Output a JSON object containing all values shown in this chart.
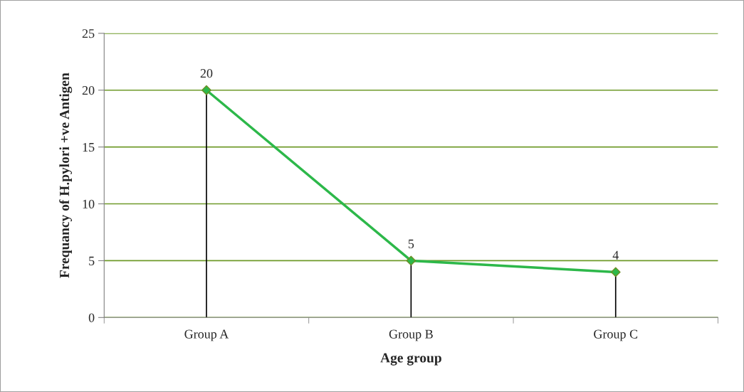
{
  "chart_data": {
    "type": "line",
    "xlabel": "Age group",
    "ylabel": "Frequancy of H.pylori +ve Antigen",
    "categories": [
      "Group A",
      "Group B",
      "Group C"
    ],
    "series": [
      {
        "color": "#2db84a",
        "values": [
          20,
          5,
          4
        ],
        "errors": [
          [
            0,
            20
          ],
          [
            0,
            5
          ],
          [
            0,
            4
          ]
        ]
      }
    ],
    "ylim": [
      0,
      25
    ],
    "yticks": [
      0,
      5,
      10,
      15,
      20,
      25
    ],
    "grid": "y",
    "marker": "diamond",
    "line_style": "solid",
    "data_labels": true
  }
}
